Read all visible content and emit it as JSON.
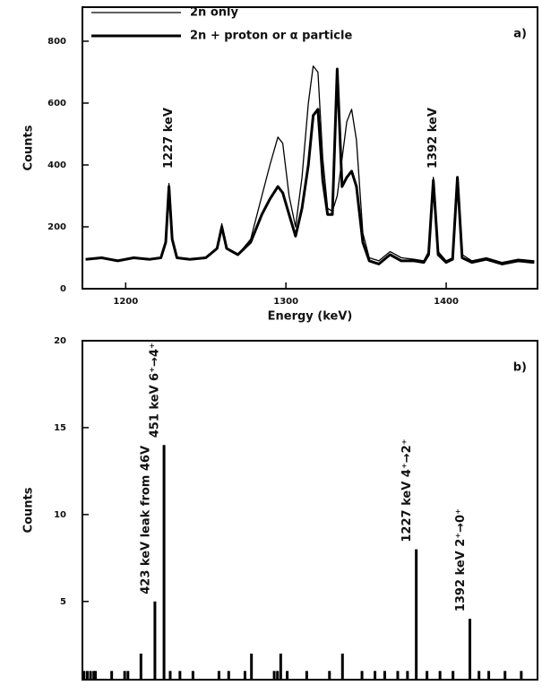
{
  "chart_data": [
    {
      "type": "line",
      "panel_label": "a)",
      "xlabel": "Energy (keV)",
      "ylabel": "Counts",
      "xlim": [
        1173,
        1457
      ],
      "ylim": [
        0,
        910
      ],
      "xticks": [
        1200,
        1300,
        1400
      ],
      "yticks": [
        0,
        200,
        400,
        600,
        800
      ],
      "legend": "upper left",
      "x": [
        1175,
        1185,
        1195,
        1205,
        1215,
        1222,
        1225,
        1227,
        1229,
        1232,
        1240,
        1250,
        1257,
        1260,
        1263,
        1270,
        1278,
        1285,
        1290,
        1295,
        1298,
        1302,
        1306,
        1310,
        1314,
        1317,
        1320,
        1323,
        1326,
        1329,
        1332,
        1335,
        1338,
        1341,
        1344,
        1348,
        1352,
        1358,
        1365,
        1372,
        1380,
        1386,
        1389,
        1392,
        1395,
        1400,
        1404,
        1407,
        1410,
        1416,
        1425,
        1435,
        1445,
        1455
      ],
      "series": [
        {
          "name": "2n only",
          "color": "#000000",
          "linewidth": 1.3,
          "values": [
            95,
            100,
            90,
            100,
            95,
            100,
            150,
            340,
            160,
            100,
            95,
            100,
            130,
            210,
            130,
            110,
            160,
            300,
            400,
            490,
            470,
            300,
            200,
            360,
            600,
            720,
            700,
            420,
            260,
            250,
            300,
            420,
            540,
            580,
            480,
            180,
            100,
            90,
            120,
            100,
            95,
            90,
            120,
            360,
            120,
            90,
            100,
            360,
            110,
            90,
            100,
            85,
            95,
            90
          ]
        },
        {
          "name": "2n + proton or α particle",
          "color": "#000000",
          "linewidth": 3,
          "values": [
            95,
            100,
            90,
            100,
            95,
            100,
            150,
            330,
            160,
            100,
            95,
            100,
            130,
            200,
            130,
            110,
            150,
            240,
            290,
            330,
            310,
            240,
            170,
            260,
            400,
            560,
            580,
            350,
            240,
            240,
            710,
            330,
            360,
            380,
            330,
            150,
            90,
            80,
            110,
            90,
            90,
            85,
            110,
            350,
            110,
            85,
            95,
            360,
            100,
            85,
            95,
            80,
            90,
            85
          ]
        }
      ],
      "annotations": [
        {
          "text": "1227 keV",
          "x": 1227
        },
        {
          "text": "1392 keV",
          "x": 1392
        }
      ]
    },
    {
      "type": "bar",
      "panel_label": "b)",
      "ylabel": "Counts",
      "color": "#000000",
      "xlim": [
        200,
        1600
      ],
      "ylim": [
        0.5,
        20
      ],
      "yticks": [
        5,
        10,
        15,
        20
      ],
      "x": [
        205,
        215,
        225,
        235,
        240,
        290,
        330,
        340,
        380,
        423,
        451,
        470,
        500,
        540,
        620,
        650,
        700,
        720,
        790,
        800,
        810,
        830,
        890,
        960,
        1000,
        1060,
        1100,
        1130,
        1170,
        1200,
        1227,
        1260,
        1300,
        1340,
        1392,
        1420,
        1450,
        1500,
        1550
      ],
      "values": [
        1,
        1,
        1,
        1,
        1,
        1,
        1,
        1,
        2,
        5,
        14,
        1,
        1,
        1,
        1,
        1,
        1,
        2,
        1,
        1,
        2,
        1,
        1,
        1,
        2,
        1,
        1,
        1,
        1,
        1,
        8,
        1,
        1,
        1,
        4,
        1,
        1,
        1,
        1
      ],
      "annotations": [
        {
          "text": "423 keV leak from 46V",
          "x": 423
        },
        {
          "text": "451 keV 6⁺→4⁺",
          "x": 451
        },
        {
          "text": "1227 keV 4⁺→2⁺",
          "x": 1227
        },
        {
          "text": "1392 keV 2⁺→0⁺",
          "x": 1392
        }
      ]
    }
  ]
}
